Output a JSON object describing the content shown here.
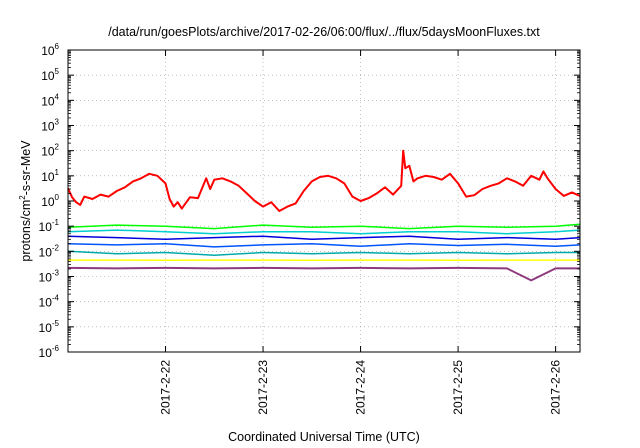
{
  "chart_data": {
    "type": "line",
    "title": "/data/run/goesPlots/archive/2017-02-26/06:00/flux/../flux/5daysMoonFluxes.txt",
    "xlabel": "Coordinated Universal Time (UTC)",
    "ylabel_parts": [
      "protons/cm",
      "2",
      "-s-sr-MeV"
    ],
    "xlim": [
      "2017-02-21T00:00",
      "2017-02-26T06:00"
    ],
    "ylim": [
      1e-06,
      1000000.0
    ],
    "yscale": "log",
    "grid": true,
    "x_ticks": [
      {
        "label": "2017-2-22",
        "value": "2017-02-22T00:00"
      },
      {
        "label": "2017-2-23",
        "value": "2017-02-23T00:00"
      },
      {
        "label": "2017-2-24",
        "value": "2017-02-24T00:00"
      },
      {
        "label": "2017-2-25",
        "value": "2017-02-25T00:00"
      },
      {
        "label": "2017-2-26",
        "value": "2017-02-26T00:00"
      }
    ],
    "y_ticks": [
      {
        "base": "10",
        "exp": "-6",
        "value": 1e-06
      },
      {
        "base": "10",
        "exp": "-5",
        "value": 1e-05
      },
      {
        "base": "10",
        "exp": "-4",
        "value": 0.0001
      },
      {
        "base": "10",
        "exp": "-3",
        "value": 0.001
      },
      {
        "base": "10",
        "exp": "-2",
        "value": 0.01
      },
      {
        "base": "10",
        "exp": "-1",
        "value": 0.1
      },
      {
        "base": "10",
        "exp": "0",
        "value": 1
      },
      {
        "base": "10",
        "exp": "1",
        "value": 10
      },
      {
        "base": "10",
        "exp": "2",
        "value": 100
      },
      {
        "base": "10",
        "exp": "3",
        "value": 1000
      },
      {
        "base": "10",
        "exp": "4",
        "value": 10000
      },
      {
        "base": "10",
        "exp": "5",
        "value": 100000
      },
      {
        "base": "10",
        "exp": "6",
        "value": 1000000
      }
    ],
    "series": [
      {
        "color": "#ff0000",
        "width": 2,
        "x": [
          "2017-02-21T00:00",
          "2017-02-21T01:00",
          "2017-02-21T02:00",
          "2017-02-21T03:00",
          "2017-02-21T04:00",
          "2017-02-21T06:00",
          "2017-02-21T08:00",
          "2017-02-21T10:00",
          "2017-02-21T12:00",
          "2017-02-21T14:00",
          "2017-02-21T16:00",
          "2017-02-21T18:00",
          "2017-02-21T20:00",
          "2017-02-21T22:00",
          "2017-02-22T00:00",
          "2017-02-22T01:00",
          "2017-02-22T02:00",
          "2017-02-22T03:00",
          "2017-02-22T04:00",
          "2017-02-22T06:00",
          "2017-02-22T08:00",
          "2017-02-22T10:00",
          "2017-02-22T11:00",
          "2017-02-22T12:00",
          "2017-02-22T14:00",
          "2017-02-22T16:00",
          "2017-02-22T18:00",
          "2017-02-22T20:00",
          "2017-02-22T22:00",
          "2017-02-23T00:00",
          "2017-02-23T02:00",
          "2017-02-23T04:00",
          "2017-02-23T06:00",
          "2017-02-23T08:00",
          "2017-02-23T10:00",
          "2017-02-23T12:00",
          "2017-02-23T14:00",
          "2017-02-23T16:00",
          "2017-02-23T18:00",
          "2017-02-23T20:00",
          "2017-02-23T22:00",
          "2017-02-24T00:00",
          "2017-02-24T02:00",
          "2017-02-24T04:00",
          "2017-02-24T06:00",
          "2017-02-24T08:00",
          "2017-02-24T10:00",
          "2017-02-24T10:30",
          "2017-02-24T11:00",
          "2017-02-24T12:00",
          "2017-02-24T13:00",
          "2017-02-24T14:00",
          "2017-02-24T16:00",
          "2017-02-24T18:00",
          "2017-02-24T20:00",
          "2017-02-24T22:00",
          "2017-02-25T00:00",
          "2017-02-25T02:00",
          "2017-02-25T04:00",
          "2017-02-25T06:00",
          "2017-02-25T08:00",
          "2017-02-25T10:00",
          "2017-02-25T12:00",
          "2017-02-25T14:00",
          "2017-02-25T16:00",
          "2017-02-25T18:00",
          "2017-02-25T20:00",
          "2017-02-25T21:00",
          "2017-02-25T22:00",
          "2017-02-26T00:00",
          "2017-02-26T02:00",
          "2017-02-26T04:00",
          "2017-02-26T06:00"
        ],
        "y": [
          3.2,
          1.4,
          0.9,
          0.7,
          1.5,
          1.2,
          1.8,
          1.5,
          2.5,
          3.5,
          6,
          8,
          12,
          10,
          5,
          1.2,
          0.6,
          0.9,
          0.5,
          1.4,
          1.3,
          8,
          3,
          7,
          8,
          6,
          4,
          2,
          1,
          0.6,
          0.9,
          0.4,
          0.6,
          0.8,
          2.5,
          6,
          9,
          10,
          8,
          5,
          1.5,
          1.0,
          1.3,
          2.0,
          3.5,
          1.8,
          4,
          100,
          20,
          25,
          6,
          8,
          10,
          9,
          7,
          12,
          5,
          1.5,
          1.7,
          3,
          4,
          5,
          8,
          6,
          4,
          10,
          7,
          15,
          8,
          3,
          1.6,
          2.2,
          1.6
        ]
      },
      {
        "color": "#00ff00",
        "width": 1.5,
        "x": [
          "2017-02-21T00:00",
          "2017-02-21T12:00",
          "2017-02-22T00:00",
          "2017-02-22T12:00",
          "2017-02-23T00:00",
          "2017-02-23T12:00",
          "2017-02-24T00:00",
          "2017-02-24T12:00",
          "2017-02-25T00:00",
          "2017-02-25T12:00",
          "2017-02-26T00:00",
          "2017-02-26T06:00"
        ],
        "y": [
          0.09,
          0.11,
          0.1,
          0.08,
          0.11,
          0.09,
          0.1,
          0.08,
          0.1,
          0.09,
          0.1,
          0.12
        ]
      },
      {
        "color": "#00cfcf",
        "width": 1.5,
        "x": [
          "2017-02-21T00:00",
          "2017-02-21T12:00",
          "2017-02-22T00:00",
          "2017-02-22T12:00",
          "2017-02-23T00:00",
          "2017-02-23T12:00",
          "2017-02-24T00:00",
          "2017-02-24T12:00",
          "2017-02-25T00:00",
          "2017-02-25T12:00",
          "2017-02-26T00:00",
          "2017-02-26T06:00"
        ],
        "y": [
          0.06,
          0.07,
          0.06,
          0.05,
          0.06,
          0.06,
          0.05,
          0.06,
          0.06,
          0.05,
          0.06,
          0.07
        ]
      },
      {
        "color": "#0000dd",
        "width": 1.5,
        "x": [
          "2017-02-21T00:00",
          "2017-02-21T12:00",
          "2017-02-22T00:00",
          "2017-02-22T12:00",
          "2017-02-23T00:00",
          "2017-02-23T12:00",
          "2017-02-24T00:00",
          "2017-02-24T12:00",
          "2017-02-25T00:00",
          "2017-02-25T12:00",
          "2017-02-26T00:00",
          "2017-02-26T06:00"
        ],
        "y": [
          0.04,
          0.035,
          0.03,
          0.035,
          0.04,
          0.03,
          0.035,
          0.04,
          0.03,
          0.035,
          0.03,
          0.035
        ]
      },
      {
        "color": "#0055ff",
        "width": 1.5,
        "x": [
          "2017-02-21T00:00",
          "2017-02-21T12:00",
          "2017-02-22T00:00",
          "2017-02-22T12:00",
          "2017-02-23T00:00",
          "2017-02-23T12:00",
          "2017-02-24T00:00",
          "2017-02-24T12:00",
          "2017-02-25T00:00",
          "2017-02-25T12:00",
          "2017-02-26T00:00",
          "2017-02-26T06:00"
        ],
        "y": [
          0.02,
          0.018,
          0.02,
          0.015,
          0.018,
          0.02,
          0.016,
          0.02,
          0.017,
          0.019,
          0.016,
          0.018
        ]
      },
      {
        "color": "#00aaaa",
        "width": 1.5,
        "x": [
          "2017-02-21T00:00",
          "2017-02-21T12:00",
          "2017-02-22T00:00",
          "2017-02-22T12:00",
          "2017-02-23T00:00",
          "2017-02-23T12:00",
          "2017-02-24T00:00",
          "2017-02-24T12:00",
          "2017-02-25T00:00",
          "2017-02-25T12:00",
          "2017-02-26T00:00",
          "2017-02-26T06:00"
        ],
        "y": [
          0.01,
          0.008,
          0.009,
          0.007,
          0.009,
          0.008,
          0.009,
          0.008,
          0.009,
          0.008,
          0.009,
          0.009
        ]
      },
      {
        "color": "#ffff00",
        "width": 1.5,
        "x": [
          "2017-02-21T00:00",
          "2017-02-21T12:00",
          "2017-02-22T00:00",
          "2017-02-22T12:00",
          "2017-02-23T00:00",
          "2017-02-23T12:00",
          "2017-02-24T00:00",
          "2017-02-24T12:00",
          "2017-02-25T00:00",
          "2017-02-25T12:00",
          "2017-02-26T00:00",
          "2017-02-26T06:00"
        ],
        "y": [
          0.0045,
          0.0045,
          0.0044,
          0.0045,
          0.0045,
          0.0044,
          0.0045,
          0.0045,
          0.0044,
          0.0045,
          0.0045,
          0.0045
        ]
      },
      {
        "color": "#8e3a7e",
        "width": 2,
        "x": [
          "2017-02-21T00:00",
          "2017-02-21T12:00",
          "2017-02-22T00:00",
          "2017-02-22T12:00",
          "2017-02-23T00:00",
          "2017-02-23T12:00",
          "2017-02-24T00:00",
          "2017-02-24T12:00",
          "2017-02-25T00:00",
          "2017-02-25T12:00",
          "2017-02-25T18:00",
          "2017-02-26T00:00",
          "2017-02-26T06:00"
        ],
        "y": [
          0.0022,
          0.0021,
          0.0022,
          0.0021,
          0.0022,
          0.0021,
          0.0022,
          0.0021,
          0.0022,
          0.0021,
          0.0007,
          0.0021,
          0.0021
        ]
      }
    ]
  }
}
